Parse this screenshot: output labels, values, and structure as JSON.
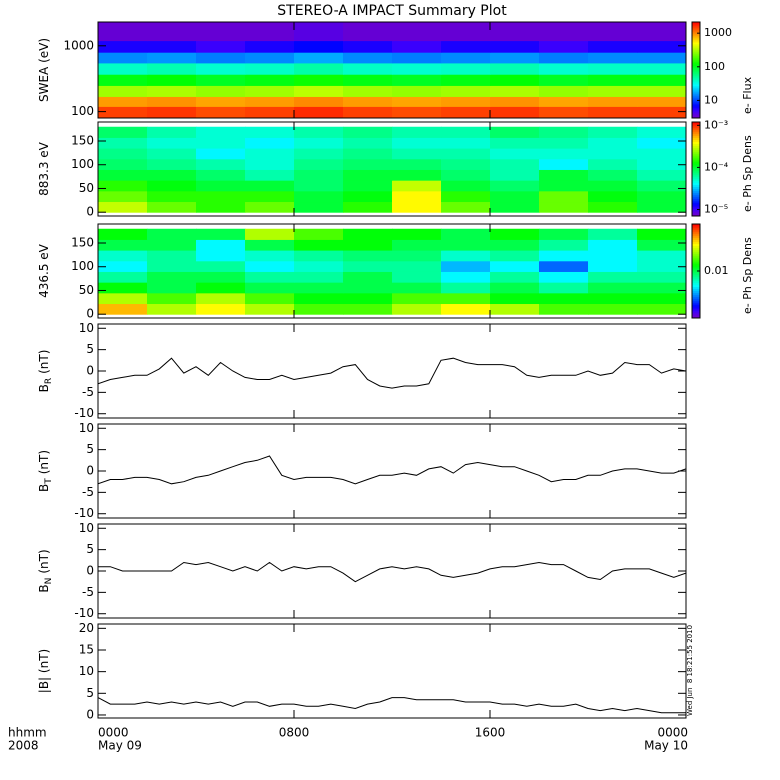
{
  "title": "STEREO-A IMPACT Summary Plot",
  "timestamp": "Wed Jun  8 18:21:55 2010",
  "corner_labels": [
    "hhmm",
    "2008"
  ],
  "xaxis": {
    "xlim": [
      0,
      24
    ],
    "xticks": [
      {
        "value": 0,
        "label": "0000"
      },
      {
        "value": 8,
        "label": "0800"
      },
      {
        "value": 16,
        "label": "1600"
      },
      {
        "value": 24,
        "label": "0000"
      }
    ],
    "date_labels": [
      {
        "value": 0,
        "label": "May 09"
      },
      {
        "value": 24,
        "label": "May 10"
      }
    ]
  },
  "chart_data": [
    {
      "type": "heatmap",
      "ylabel": "SWEA (eV)",
      "clabel": "e- Flux",
      "ylog": true,
      "clog": true,
      "ylim": [
        80,
        2300
      ],
      "yticks": [
        100,
        1000
      ],
      "clim": [
        3,
        2150
      ],
      "cticks": [
        10,
        100,
        1000
      ],
      "x": [
        0,
        2,
        4,
        6,
        8,
        10,
        12,
        14,
        16,
        18,
        20,
        22,
        24
      ],
      "y": [
        80,
        120,
        170,
        250,
        370,
        550,
        800,
        1200,
        2300
      ],
      "z": [
        [
          1500,
          1600,
          1400,
          1500,
          1700,
          1500,
          1400,
          1500,
          1600,
          1400,
          1500,
          1500
        ],
        [
          900,
          950,
          850,
          900,
          1000,
          900,
          850,
          900,
          950,
          850,
          900,
          900
        ],
        [
          300,
          320,
          280,
          300,
          350,
          300,
          280,
          300,
          320,
          280,
          300,
          300
        ],
        [
          110,
          120,
          100,
          110,
          130,
          110,
          100,
          110,
          120,
          100,
          110,
          110
        ],
        [
          40,
          45,
          38,
          40,
          48,
          40,
          38,
          40,
          45,
          38,
          40,
          40
        ],
        [
          15,
          16,
          14,
          15,
          18,
          15,
          14,
          15,
          16,
          14,
          15,
          15
        ],
        [
          6,
          6,
          5,
          6,
          7,
          6,
          5,
          6,
          6,
          5,
          6,
          6
        ],
        [
          3.5,
          3.5,
          3.5,
          3.5,
          4,
          3.5,
          3.5,
          3.5,
          3.5,
          3.5,
          3.5,
          3.5
        ]
      ]
    },
    {
      "type": "heatmap",
      "ylabel": "883.3 eV",
      "clabel": "e- Ph Sp Dens",
      "ylog": false,
      "clog": true,
      "ylim": [
        -8,
        190
      ],
      "yticks": [
        0,
        50,
        100,
        150
      ],
      "clim": [
        7e-06,
        0.0012
      ],
      "cticks": [
        {
          "value": 0.001,
          "label": "10⁻³"
        },
        {
          "value": 0.0001,
          "label": "10⁻⁴"
        },
        {
          "value": 1e-05,
          "label": "10⁻⁵"
        }
      ],
      "x": [
        0,
        2,
        4,
        6,
        8,
        10,
        12,
        14,
        16,
        18,
        20,
        22,
        24
      ],
      "y": [
        0,
        22.5,
        45,
        67.5,
        90,
        112.5,
        135,
        157.5,
        180
      ],
      "z": [
        [
          0.0003,
          0.0002,
          0.00015,
          0.0002,
          0.0001,
          0.00015,
          0.0004,
          0.0002,
          0.0001,
          0.0002,
          0.00015,
          0.0001
        ],
        [
          0.0002,
          0.00015,
          0.00015,
          0.00015,
          0.0001,
          0.00012,
          0.0004,
          0.00015,
          0.0001,
          0.0002,
          0.00012,
          0.0001
        ],
        [
          0.00015,
          0.00012,
          0.0001,
          0.0001,
          8e-05,
          0.0001,
          0.0003,
          0.0001,
          8e-05,
          0.0001,
          0.0001,
          8e-05
        ],
        [
          0.0001,
          0.0001,
          8e-05,
          6e-05,
          8e-05,
          0.0001,
          0.0001,
          8e-05,
          6e-05,
          0.0001,
          8e-05,
          6e-05
        ],
        [
          8e-05,
          7e-05,
          6e-05,
          5e-05,
          7e-05,
          8e-05,
          8e-05,
          7e-05,
          6e-05,
          4e-05,
          6e-05,
          5e-05
        ],
        [
          7e-05,
          6e-05,
          4e-05,
          5e-05,
          6e-05,
          7e-05,
          6e-05,
          6e-05,
          5e-05,
          5e-05,
          5e-05,
          5e-05
        ],
        [
          6e-05,
          5e-05,
          5e-05,
          4e-05,
          5e-05,
          6e-05,
          5e-05,
          5e-05,
          6e-05,
          6e-05,
          5e-05,
          4e-05
        ],
        [
          8e-05,
          6e-05,
          5e-05,
          5e-05,
          6e-05,
          7e-05,
          6e-05,
          6e-05,
          8e-05,
          7e-05,
          6e-05,
          5e-05
        ]
      ]
    },
    {
      "type": "heatmap",
      "ylabel": "436.5 eV",
      "clabel": "e- Ph Sp Dens",
      "ylog": false,
      "clog": true,
      "ylim": [
        -8,
        190
      ],
      "yticks": [
        0,
        50,
        100,
        150
      ],
      "clim": [
        0.002,
        0.05
      ],
      "cticks": [
        0.01
      ],
      "x": [
        0,
        2,
        4,
        6,
        8,
        10,
        12,
        14,
        16,
        18,
        20,
        22,
        24
      ],
      "y": [
        0,
        22.5,
        45,
        67.5,
        90,
        112.5,
        135,
        157.5,
        180
      ],
      "z": [
        [
          0.03,
          0.02,
          0.025,
          0.02,
          0.015,
          0.015,
          0.02,
          0.025,
          0.02,
          0.015,
          0.015,
          0.015
        ],
        [
          0.02,
          0.015,
          0.02,
          0.015,
          0.012,
          0.012,
          0.015,
          0.015,
          0.012,
          0.012,
          0.012,
          0.012
        ],
        [
          0.012,
          0.01,
          0.012,
          0.01,
          0.01,
          0.01,
          0.01,
          0.008,
          0.01,
          0.008,
          0.01,
          0.01
        ],
        [
          0.008,
          0.01,
          0.01,
          0.008,
          0.008,
          0.01,
          0.008,
          0.006,
          0.008,
          0.006,
          0.008,
          0.008
        ],
        [
          0.006,
          0.008,
          0.008,
          0.006,
          0.007,
          0.008,
          0.008,
          0.005,
          0.006,
          0.004,
          0.006,
          0.007
        ],
        [
          0.007,
          0.008,
          0.006,
          0.007,
          0.008,
          0.009,
          0.009,
          0.007,
          0.008,
          0.006,
          0.006,
          0.007
        ],
        [
          0.01,
          0.01,
          0.006,
          0.01,
          0.012,
          0.012,
          0.01,
          0.01,
          0.01,
          0.008,
          0.006,
          0.01
        ],
        [
          0.012,
          0.01,
          0.01,
          0.02,
          0.015,
          0.012,
          0.012,
          0.01,
          0.012,
          0.01,
          0.008,
          0.012
        ]
      ]
    },
    {
      "type": "line",
      "ylabel": "B",
      "ylabel_sub": "R",
      "ylabel_unit": "(nT)",
      "color": "#000000",
      "ylim": [
        -11,
        11
      ],
      "yticks": [
        -10,
        -5,
        0,
        5,
        10
      ],
      "x": [
        0,
        0.5,
        1,
        1.5,
        2,
        2.5,
        3,
        3.5,
        4,
        4.5,
        5,
        5.5,
        6,
        6.5,
        7,
        7.5,
        8,
        8.5,
        9,
        9.5,
        10,
        10.5,
        11,
        11.5,
        12,
        12.5,
        13,
        13.5,
        14,
        14.5,
        15,
        15.5,
        16,
        16.5,
        17,
        17.5,
        18,
        18.5,
        19,
        19.5,
        20,
        20.5,
        21,
        21.5,
        22,
        22.5,
        23,
        23.5,
        24
      ],
      "values": [
        -3,
        -2,
        -1.5,
        -1,
        -1,
        0.5,
        3,
        -0.5,
        1,
        -1,
        2,
        0,
        -1.5,
        -2,
        -2,
        -1,
        -2,
        -1.5,
        -1,
        -0.5,
        1,
        1.5,
        -2,
        -3.5,
        -4,
        -3.5,
        -3.5,
        -3,
        2.5,
        3,
        2,
        1.5,
        1.5,
        1.5,
        1,
        -1,
        -1.5,
        -1,
        -1,
        -1,
        0,
        -1,
        -0.5,
        2,
        1.5,
        1.5,
        -0.5,
        0.5,
        0
      ]
    },
    {
      "type": "line",
      "ylabel": "B",
      "ylabel_sub": "T",
      "ylabel_unit": "(nT)",
      "color": "#000000",
      "ylim": [
        -11,
        11
      ],
      "yticks": [
        -10,
        -5,
        0,
        5,
        10
      ],
      "x": [
        0,
        0.5,
        1,
        1.5,
        2,
        2.5,
        3,
        3.5,
        4,
        4.5,
        5,
        5.5,
        6,
        6.5,
        7,
        7.5,
        8,
        8.5,
        9,
        9.5,
        10,
        10.5,
        11,
        11.5,
        12,
        12.5,
        13,
        13.5,
        14,
        14.5,
        15,
        15.5,
        16,
        16.5,
        17,
        17.5,
        18,
        18.5,
        19,
        19.5,
        20,
        20.5,
        21,
        21.5,
        22,
        22.5,
        23,
        23.5,
        24
      ],
      "values": [
        -3,
        -2,
        -2,
        -1.5,
        -1.5,
        -2,
        -3,
        -2.5,
        -1.5,
        -1,
        0,
        1,
        2,
        2.5,
        3.5,
        -1,
        -2,
        -1.5,
        -1.5,
        -1.5,
        -2,
        -3,
        -2,
        -1,
        -1,
        -0.5,
        -1,
        0.5,
        1,
        -0.5,
        1.5,
        2,
        1.5,
        1,
        1,
        0,
        -1,
        -2.5,
        -2,
        -2,
        -1,
        -1,
        0,
        0.5,
        0.5,
        0,
        -0.5,
        -0.5,
        0.5
      ]
    },
    {
      "type": "line",
      "ylabel": "B",
      "ylabel_sub": "N",
      "ylabel_unit": "(nT)",
      "color": "#000000",
      "ylim": [
        -11,
        11
      ],
      "yticks": [
        -10,
        -5,
        0,
        5,
        10
      ],
      "x": [
        0,
        0.5,
        1,
        1.5,
        2,
        2.5,
        3,
        3.5,
        4,
        4.5,
        5,
        5.5,
        6,
        6.5,
        7,
        7.5,
        8,
        8.5,
        9,
        9.5,
        10,
        10.5,
        11,
        11.5,
        12,
        12.5,
        13,
        13.5,
        14,
        14.5,
        15,
        15.5,
        16,
        16.5,
        17,
        17.5,
        18,
        18.5,
        19,
        19.5,
        20,
        20.5,
        21,
        21.5,
        22,
        22.5,
        23,
        23.5,
        24
      ],
      "values": [
        1,
        1,
        0,
        0,
        0,
        0,
        0,
        2,
        1.5,
        2,
        1,
        0,
        1,
        0,
        2,
        0,
        1,
        0.5,
        1,
        1,
        -0.5,
        -2.5,
        -1,
        0.5,
        1,
        0.5,
        1,
        0.5,
        -1,
        -1.5,
        -1,
        -0.5,
        0.5,
        1,
        1,
        1.5,
        2,
        1.5,
        1.5,
        0,
        -1.5,
        -2,
        0,
        0.5,
        0.5,
        0.5,
        -0.5,
        -1.5,
        -0.5
      ]
    },
    {
      "type": "line",
      "ylabel": "|B| (nT)",
      "color": "#000000",
      "ylim": [
        -0.7,
        21
      ],
      "yticks": [
        0,
        5,
        10,
        15,
        20
      ],
      "x": [
        0,
        0.5,
        1,
        1.5,
        2,
        2.5,
        3,
        3.5,
        4,
        4.5,
        5,
        5.5,
        6,
        6.5,
        7,
        7.5,
        8,
        8.5,
        9,
        9.5,
        10,
        10.5,
        11,
        11.5,
        12,
        12.5,
        13,
        13.5,
        14,
        14.5,
        15,
        15.5,
        16,
        16.5,
        17,
        17.5,
        18,
        18.5,
        19,
        19.5,
        20,
        20.5,
        21,
        21.5,
        22,
        22.5,
        23,
        23.5,
        24
      ],
      "values": [
        4,
        2.5,
        2.5,
        2.5,
        3,
        2.5,
        3,
        2.5,
        3,
        2.5,
        3,
        2,
        3,
        3,
        2,
        2.5,
        2.5,
        2,
        2,
        2.5,
        2,
        1.5,
        2.5,
        3,
        4,
        4,
        3.5,
        3.5,
        3.5,
        3.5,
        3,
        3,
        3,
        2.5,
        2.5,
        2,
        2.5,
        2,
        2,
        2.5,
        1.5,
        1,
        1.5,
        1,
        1.5,
        1,
        0.5,
        0.5,
        0.5
      ]
    }
  ]
}
